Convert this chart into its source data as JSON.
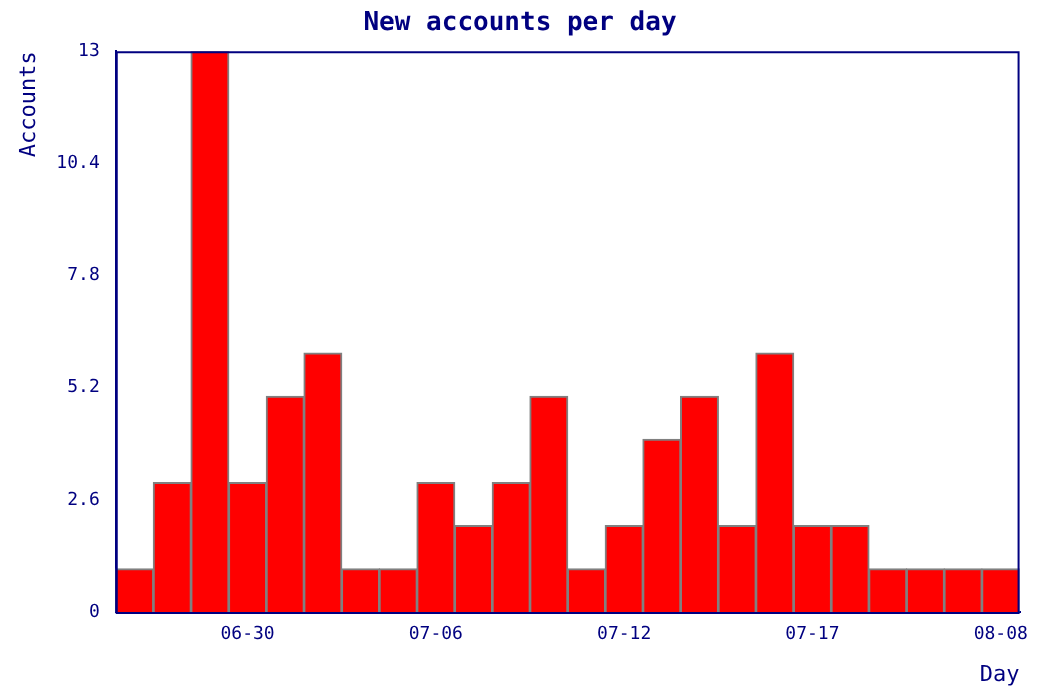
{
  "chart_data": {
    "type": "bar",
    "title": "New accounts per day",
    "xlabel": "Day",
    "ylabel": "Accounts",
    "categories": [
      null,
      null,
      null,
      "06-30",
      null,
      null,
      null,
      null,
      "07-06",
      null,
      null,
      null,
      null,
      "07-12",
      null,
      null,
      null,
      null,
      "07-17",
      null,
      null,
      null,
      null,
      "08-08"
    ],
    "values": [
      1,
      3,
      13,
      3,
      5,
      6,
      1,
      1,
      3,
      2,
      3,
      5,
      1,
      2,
      4,
      5,
      2,
      6,
      2,
      2,
      1,
      1,
      1,
      1
    ],
    "color": "#ff0000",
    "ylim": [
      0,
      13
    ],
    "yticks": [
      0,
      2.6,
      5.2,
      7.8,
      10.4,
      13
    ],
    "grid": false,
    "legend": false
  }
}
